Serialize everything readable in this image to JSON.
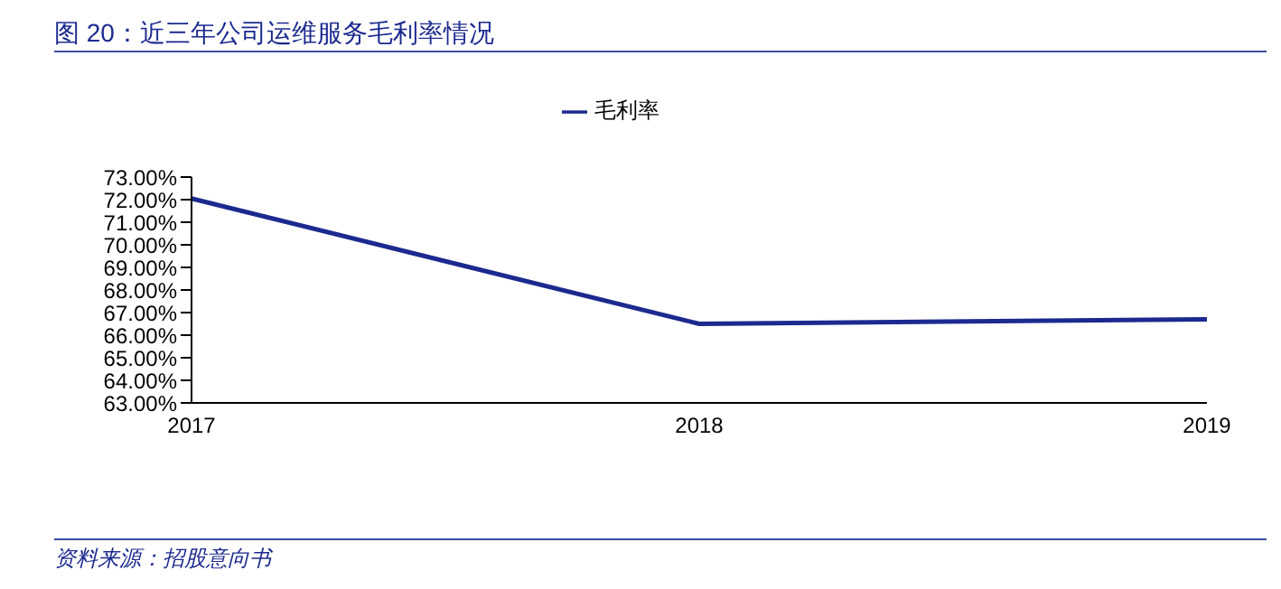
{
  "chart_data": {
    "type": "line",
    "title": "图 20：近三年公司运维服务毛利率情况",
    "annotations": [
      "资料来源：招股意向书"
    ],
    "categories": [
      "2017",
      "2018",
      "2019"
    ],
    "series": [
      {
        "name": "毛利率",
        "color": "#1c2a8f",
        "values": [
          72.05,
          66.5,
          66.7
        ]
      }
    ],
    "ylim": [
      63,
      73
    ],
    "yticks": [
      {
        "value": 63,
        "label": "63.00%"
      },
      {
        "value": 64,
        "label": "64.00%"
      },
      {
        "value": 65,
        "label": "65.00%"
      },
      {
        "value": 66,
        "label": "66.00%"
      },
      {
        "value": 67,
        "label": "67.00%"
      },
      {
        "value": 68,
        "label": "68.00%"
      },
      {
        "value": 69,
        "label": "69.00%"
      },
      {
        "value": 70,
        "label": "70.00%"
      },
      {
        "value": 71,
        "label": "71.00%"
      },
      {
        "value": 72,
        "label": "72.00%"
      },
      {
        "value": 73,
        "label": "73.00%"
      }
    ],
    "legend": "top",
    "grid": false,
    "marker": "none",
    "line_style": "solid"
  }
}
